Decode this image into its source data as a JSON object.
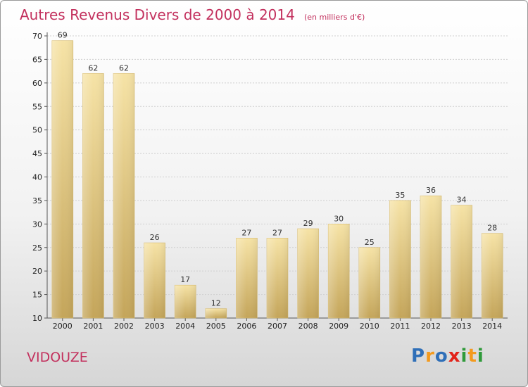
{
  "title": "Autres Revenus Divers de 2000 à 2014",
  "subtitle": "(en milliers d'€)",
  "place": "VIDOUZE",
  "logo": {
    "text": "Proxiti",
    "letters": [
      {
        "char": "P",
        "color": "#2f6fb8"
      },
      {
        "char": "r",
        "color": "#f39a1e"
      },
      {
        "char": "o",
        "color": "#2f6fb8"
      },
      {
        "char": "x",
        "color": "#e2231a"
      },
      {
        "char": "i",
        "color": "#2f9a3a"
      },
      {
        "char": "t",
        "color": "#f39a1e"
      },
      {
        "char": "i",
        "color": "#2f9a3a"
      }
    ]
  },
  "chart_data": {
    "type": "bar",
    "title": "Autres Revenus Divers de 2000 à 2014",
    "subtitle": "(en milliers d'€)",
    "xlabel": "",
    "ylabel": "",
    "categories": [
      "2000",
      "2001",
      "2002",
      "2003",
      "2004",
      "2005",
      "2006",
      "2007",
      "2008",
      "2009",
      "2010",
      "2011",
      "2012",
      "2013",
      "2014"
    ],
    "values": [
      69,
      62,
      62,
      26,
      17,
      12,
      27,
      27,
      29,
      30,
      25,
      35,
      36,
      34,
      28
    ],
    "ylim": [
      10,
      70
    ],
    "yticks": [
      10,
      15,
      20,
      25,
      30,
      35,
      40,
      45,
      50,
      55,
      60,
      65,
      70
    ],
    "grid": true,
    "bar_color": "#e9cf86",
    "bar_highlight": "#f6e3a6",
    "bar_shadow": "#c4a55a"
  }
}
